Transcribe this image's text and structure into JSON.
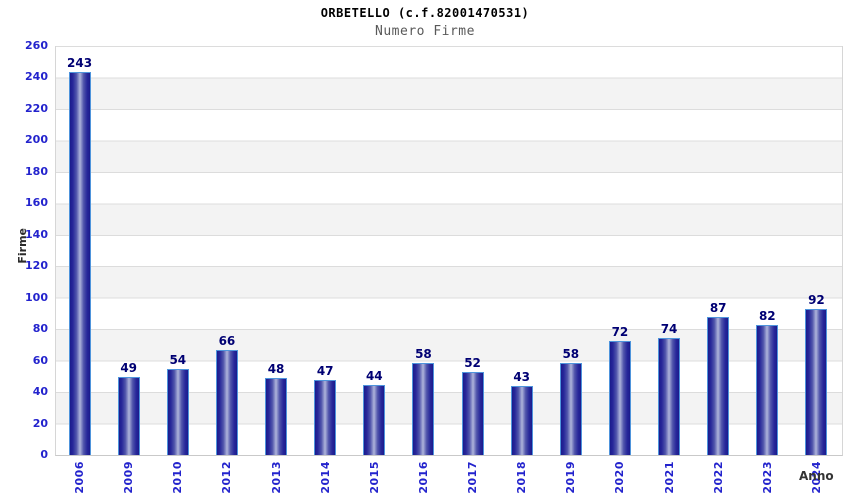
{
  "header": {
    "title": "ORBETELLO (c.f.82001470531)",
    "subtitle": "Numero Firme"
  },
  "chart_data": {
    "type": "bar",
    "title": "ORBETELLO (c.f.82001470531)",
    "subtitle": "Numero Firme",
    "xlabel": "Anno",
    "ylabel": "Firme",
    "categories": [
      "2006",
      "2009",
      "2010",
      "2012",
      "2013",
      "2014",
      "2015",
      "2016",
      "2017",
      "2018",
      "2019",
      "2020",
      "2021",
      "2022",
      "2023",
      "2024"
    ],
    "values": [
      243,
      49,
      54,
      66,
      48,
      47,
      44,
      58,
      52,
      43,
      58,
      72,
      74,
      87,
      82,
      92
    ],
    "ylim": [
      0,
      260
    ],
    "ytick_step": 20,
    "ytick_labels": [
      "0",
      "20",
      "40",
      "60",
      "80",
      "100",
      "120",
      "140",
      "160",
      "180",
      "200",
      "220",
      "240",
      "260"
    ],
    "grid": "horizontal-bands-alternating",
    "legend": "none",
    "colors": {
      "bar_border": "#4e94dc",
      "bar_dark": "#1b1b8c",
      "bar_light": "#aeb4db",
      "axis_tick_label": "#2323cd",
      "value_label": "#000073",
      "band_gray": "#f3f3f3",
      "gridline": "#dcdcdc",
      "subtitle_gray": "#595959"
    }
  }
}
